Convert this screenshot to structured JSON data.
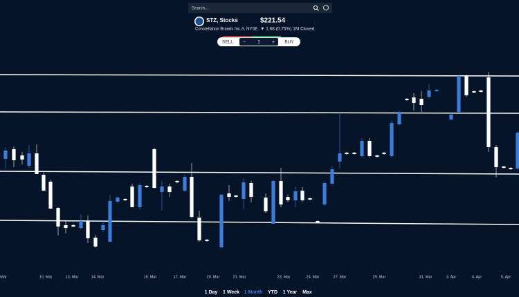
{
  "search": {
    "placeholder": "Search..."
  },
  "quote": {
    "symbol": "STZ, Stocks",
    "price": "$221.54",
    "company": "Constellation Brands Inc.A, NYSE",
    "change": "▼ 1.68 (0.75%) 1M Closed"
  },
  "trade": {
    "sell": "SELL",
    "minus": "−",
    "quantity": "1",
    "plus": "+",
    "buy": "BUY"
  },
  "ranges": [
    "1 Day",
    "1 Week",
    "1 Month",
    "YTD",
    "1 Year",
    "Max"
  ],
  "active_range": "1 Month",
  "chart_data": {
    "type": "candlestick",
    "up_color": "#3b7dd8",
    "down_color": "#ffffff",
    "line_color": "#ffffff",
    "ylim": [
      203,
      230
    ],
    "x_labels": [
      "Mar",
      "10. Mar",
      "13. Mar",
      "14. Mar",
      "16. Mar",
      "17. Mar",
      "20. Mar",
      "21. Mar",
      "23. Mar",
      "24. Mar",
      "27. Mar",
      "29. Mar",
      "31. Mar",
      "3. Apr",
      "4. Apr",
      "5. Apr"
    ],
    "trendlines": [
      [
        229.2,
        229.0
      ],
      [
        223.8,
        223.6
      ],
      [
        215.2,
        214.8
      ],
      [
        208.1,
        207.5
      ]
    ],
    "open": [
      217.0,
      218.4,
      217.5,
      216.0,
      217.8,
      214.7,
      213.7,
      209.9,
      207.4,
      207.4,
      207.0,
      208.0,
      205.6,
      206.7,
      205.0,
      210.8,
      211.2,
      213.0,
      210.0,
      213.1,
      218.4,
      212.2,
      213.0,
      213.8,
      212.4,
      214.4,
      208.5,
      205.3,
      204.2,
      212.0,
      211.7,
      211.2,
      213.5,
      211.4,
      207.6,
      213.8,
      211.5,
      211.0,
      212.4,
      211.3,
      208.0,
      210.4,
      213.4,
      216.6,
      217.9,
      217.9,
      217.4,
      219.6,
      217.5,
      217.9,
      217.4,
      222.0,
      225.7,
      225.9,
      225.7,
      226.0,
      226.8,
      222.7,
      223.8,
      229.0,
      226.8,
      226.9,
      228.8,
      218.7,
      215.9,
      215.7,
      215.6
    ],
    "high": [
      218.6,
      218.8,
      218.0,
      219.0,
      219.1,
      215.0,
      214.0,
      210.0,
      208.0,
      207.6,
      209.0,
      208.8,
      206.0,
      208.0,
      211.8,
      211.6,
      211.3,
      213.4,
      213.5,
      213.2,
      218.6,
      213.8,
      213.4,
      213.9,
      214.7,
      216.4,
      209.5,
      205.4,
      211.9,
      213.2,
      211.8,
      214.2,
      213.8,
      212.0,
      214.0,
      215.7,
      211.8,
      213.0,
      212.9,
      211.4,
      208.1,
      213.7,
      215.9,
      223.8,
      218.0,
      218.0,
      220.0,
      220.0,
      217.6,
      218.0,
      222.5,
      224.0,
      225.8,
      226.5,
      226.8,
      227.8,
      227.1,
      223.5,
      229.2,
      229.2,
      226.9,
      227.0,
      229.6,
      219.0,
      216.0,
      215.8,
      221.0
    ],
    "low": [
      215.6,
      215.8,
      216.2,
      215.7,
      214.8,
      212.3,
      209.7,
      205.9,
      206.2,
      207.1,
      206.8,
      204.8,
      204.2,
      206.4,
      205.0,
      210.7,
      210.9,
      210.0,
      209.7,
      212.8,
      212.7,
      209.5,
      211.5,
      213.5,
      212.2,
      208.4,
      205.0,
      205.0,
      204.0,
      210.9,
      211.4,
      209.7,
      210.7,
      209.2,
      207.6,
      210.0,
      210.8,
      210.0,
      210.8,
      211.0,
      207.7,
      210.2,
      213.3,
      215.6,
      217.6,
      217.6,
      217.2,
      217.2,
      217.2,
      217.6,
      217.2,
      221.8,
      225.4,
      224.0,
      223.8,
      225.7,
      226.7,
      222.6,
      223.7,
      226.0,
      226.5,
      226.6,
      218.0,
      214.3,
      215.6,
      215.4,
      215.4
    ],
    "close": [
      218.2,
      216.8,
      216.9,
      217.8,
      214.8,
      212.4,
      209.8,
      207.2,
      207.0,
      207.2,
      208.0,
      205.5,
      204.3,
      207.4,
      210.9,
      211.4,
      211.0,
      210.0,
      213.2,
      212.9,
      212.8,
      213.0,
      212.2,
      213.6,
      214.4,
      208.6,
      205.2,
      205.1,
      211.8,
      211.5,
      211.5,
      213.6,
      211.5,
      209.4,
      213.8,
      210.4,
      211.0,
      212.3,
      211.0,
      211.1,
      207.8,
      213.5,
      215.5,
      217.8,
      217.7,
      217.7,
      219.6,
      217.4,
      217.3,
      217.7,
      222.2,
      223.8,
      225.5,
      225.1,
      224.8,
      226.9,
      227.0,
      223.4,
      229.0,
      226.2,
      226.6,
      226.7,
      218.7,
      215.8,
      215.7,
      215.5,
      220.8
    ]
  }
}
